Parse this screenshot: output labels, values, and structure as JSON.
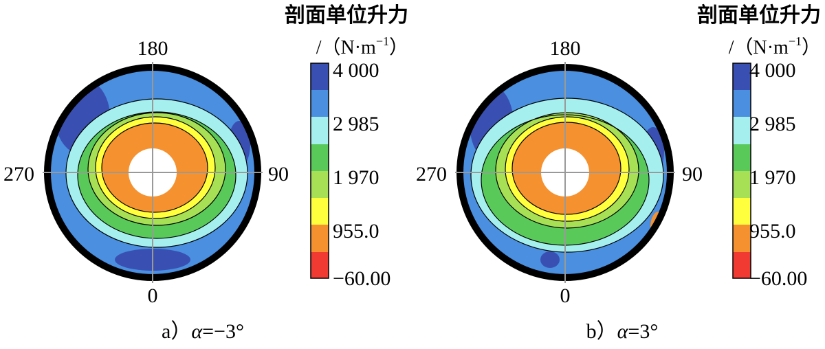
{
  "colorbar": {
    "title_line1": "剖面单位升力",
    "title_line2": "/（N·m",
    "title_sup": "−1",
    "title_close": "）",
    "ticks": [
      "4 000",
      "2 985",
      "1 970",
      "955.0",
      "−60.00"
    ],
    "bands": [
      "#3a4fb2",
      "#4a8fe0",
      "#a6efef",
      "#59c95a",
      "#a8e055",
      "#ffff3d",
      "#f5912f",
      "#f03a32"
    ]
  },
  "chart_data": [
    {
      "type": "heatmap",
      "caption_prefix": "a）",
      "caption_alpha": "α",
      "caption_value": "=−3°",
      "angle_labels": {
        "top": "180",
        "right": "90",
        "bottom": "0",
        "left": "270"
      },
      "levels": [
        -60,
        955,
        1970,
        2985,
        4000
      ],
      "colorbar_ticks": [
        "4 000",
        "2 985",
        "1 970",
        "955.0",
        "−60.00"
      ]
    },
    {
      "type": "heatmap",
      "caption_prefix": "b）",
      "caption_alpha": "α",
      "caption_value": "=3°",
      "angle_labels": {
        "top": "180",
        "right": "90",
        "bottom": "0",
        "left": "270"
      },
      "levels": [
        -60,
        955,
        1970,
        2985,
        4000
      ],
      "colorbar_ticks": [
        "4 000",
        "2 985",
        "1 970",
        "955.0",
        "−60.00"
      ]
    }
  ]
}
